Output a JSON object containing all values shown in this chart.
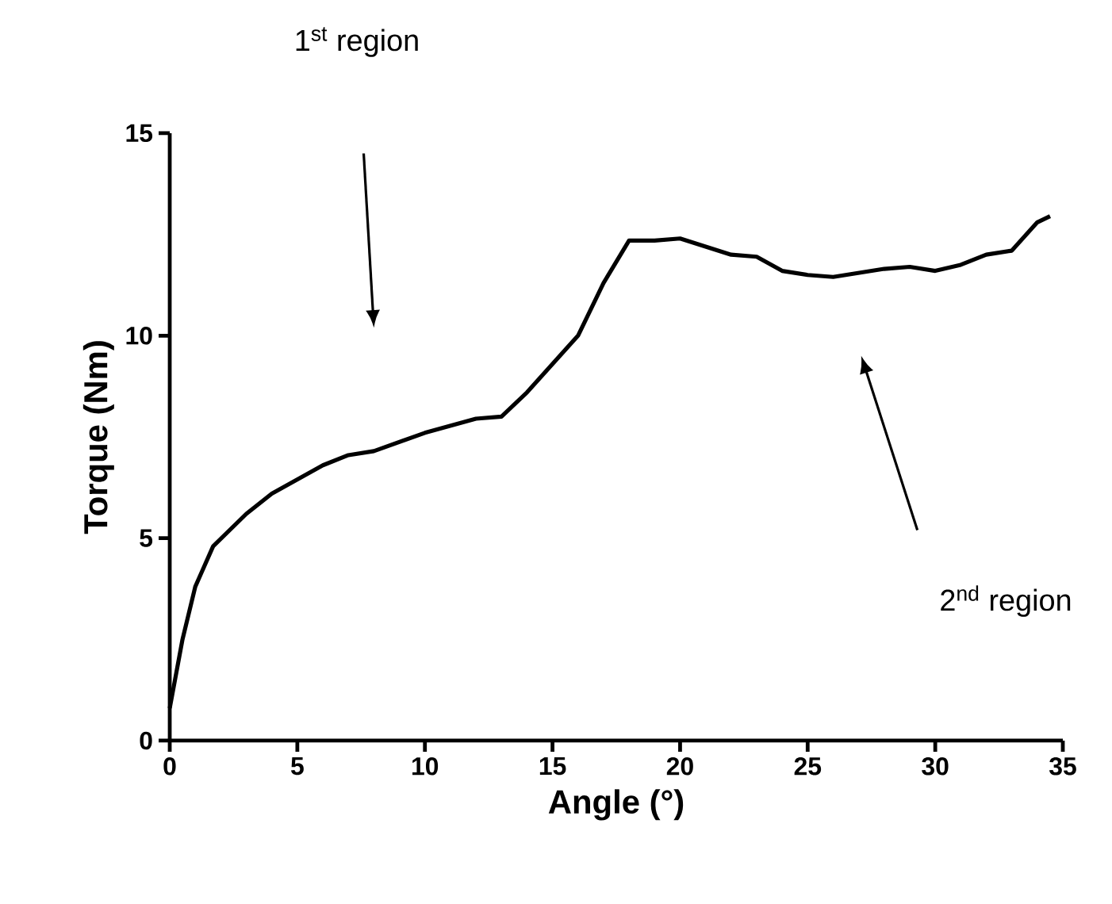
{
  "chart_data": {
    "type": "line",
    "xlabel": "Angle (°)",
    "ylabel": "Torque (Nm)",
    "x": [
      0,
      0.5,
      1,
      1.7,
      3,
      4,
      6,
      7,
      8,
      10,
      12,
      13,
      14,
      15,
      16,
      17,
      18,
      19,
      20,
      21,
      22,
      23,
      24,
      25,
      26,
      27,
      28,
      29,
      30,
      31,
      32,
      33,
      34,
      34.5
    ],
    "series": [
      {
        "color": "#000000",
        "values": [
          0.8,
          2.5,
          3.8,
          4.8,
          5.6,
          6.1,
          6.8,
          7.05,
          7.15,
          7.6,
          7.95,
          8.0,
          8.6,
          9.3,
          10.0,
          11.3,
          12.35,
          12.35,
          12.4,
          12.2,
          12.0,
          11.95,
          11.6,
          11.5,
          11.45,
          11.55,
          11.65,
          11.7,
          11.6,
          11.75,
          12.0,
          12.1,
          12.8,
          12.95
        ]
      }
    ],
    "xlim": [
      0,
      35
    ],
    "ylim": [
      0,
      15
    ],
    "xticks": [
      0,
      5,
      10,
      15,
      20,
      25,
      30,
      35
    ],
    "yticks": [
      0,
      5,
      10,
      15
    ],
    "grid": false,
    "marker": "none",
    "line_style": "solid",
    "annotations": [
      "1$^{st}$ region",
      "2$^{nd}$ region"
    ]
  }
}
